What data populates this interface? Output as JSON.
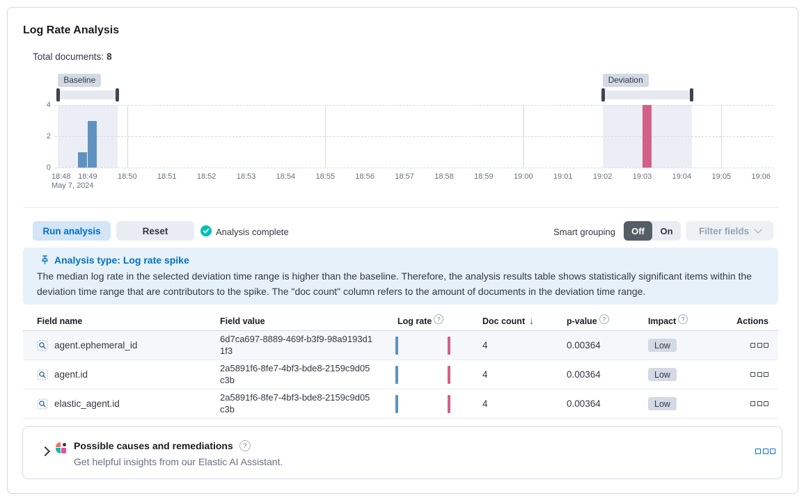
{
  "header": {
    "title": "Log Rate Analysis",
    "total_documents_label": "Total documents:",
    "total_documents_value": "8"
  },
  "chart_data": {
    "type": "bar",
    "title": "Document count histogram",
    "xlabel": "",
    "ylabel": "",
    "y_ticks": [
      "0",
      "2",
      "4"
    ],
    "ylim": [
      0,
      4
    ],
    "x_ticks": [
      "18:48",
      "18:49",
      "18:50",
      "18:51",
      "18:52",
      "18:53",
      "18:54",
      "18:55",
      "18:56",
      "18:57",
      "18:58",
      "18:59",
      "19:00",
      "19:01",
      "19:02",
      "19:03",
      "19:04",
      "19:05",
      "19:06"
    ],
    "x_start_date_label": "May 7, 2024",
    "major_gridlines": [
      "18:50",
      "18:55",
      "19:00",
      "19:05"
    ],
    "bucket_seconds": 15,
    "grid": true,
    "brushes": [
      {
        "name": "baseline",
        "label": "Baseline",
        "start": "18:48:15",
        "end": "18:49:45"
      },
      {
        "name": "deviation",
        "label": "Deviation",
        "start": "19:02:00",
        "end": "19:04:15"
      }
    ],
    "series": [
      {
        "name": "baseline-doc-count",
        "color": "#6092C0",
        "points": [
          {
            "x": "18:48:45",
            "y": 1
          },
          {
            "x": "18:49:00",
            "y": 3
          }
        ]
      },
      {
        "name": "deviation-doc-count",
        "color": "#D36086",
        "points": [
          {
            "x": "19:03:00",
            "y": 4
          }
        ]
      }
    ]
  },
  "toolbar": {
    "run_button": "Run analysis",
    "reset_button": "Reset",
    "status": "Analysis complete",
    "smart_grouping_label": "Smart grouping",
    "group_off": "Off",
    "group_on": "On",
    "filter_fields_button": "Filter fields"
  },
  "callout": {
    "title": "Analysis type: Log rate spike",
    "body": "The median log rate in the selected deviation time range is higher than the baseline. Therefore, the analysis results table shows statistically significant items within the deviation time range that are contributors to the spike. The \"doc count\" column refers to the amount of documents in the deviation time range."
  },
  "table": {
    "columns": {
      "field_name": "Field name",
      "field_value": "Field value",
      "log_rate": "Log rate",
      "doc_count": "Doc count",
      "p_value": "p-value",
      "impact": "Impact",
      "actions": "Actions"
    },
    "sort": {
      "column": "doc_count",
      "direction": "desc",
      "arrow": "↓"
    },
    "rows": [
      {
        "field_name": "agent.ephemeral_id",
        "field_value": "6d7ca697-8889-469f-b3f9-98a9193d11f3",
        "doc_count": "4",
        "p_value": "0.00364",
        "impact": "Low"
      },
      {
        "field_name": "agent.id",
        "field_value": "2a5891f6-8fe7-4bf3-bde8-2159c9d05c3b",
        "doc_count": "4",
        "p_value": "0.00364",
        "impact": "Low"
      },
      {
        "field_name": "elastic_agent.id",
        "field_value": "2a5891f6-8fe7-4bf3-bde8-2159c9d05c3b",
        "doc_count": "4",
        "p_value": "0.00364",
        "impact": "Low"
      }
    ]
  },
  "footer": {
    "title": "Possible causes and remediations",
    "subtitle": "Get helpful insights from our Elastic AI Assistant."
  },
  "colors": {
    "primary": "#0071C2",
    "success": "#00BFB3",
    "bar_baseline": "#6092C0",
    "bar_deviation": "#D36086",
    "callout_bg": "#E6F1FA"
  }
}
